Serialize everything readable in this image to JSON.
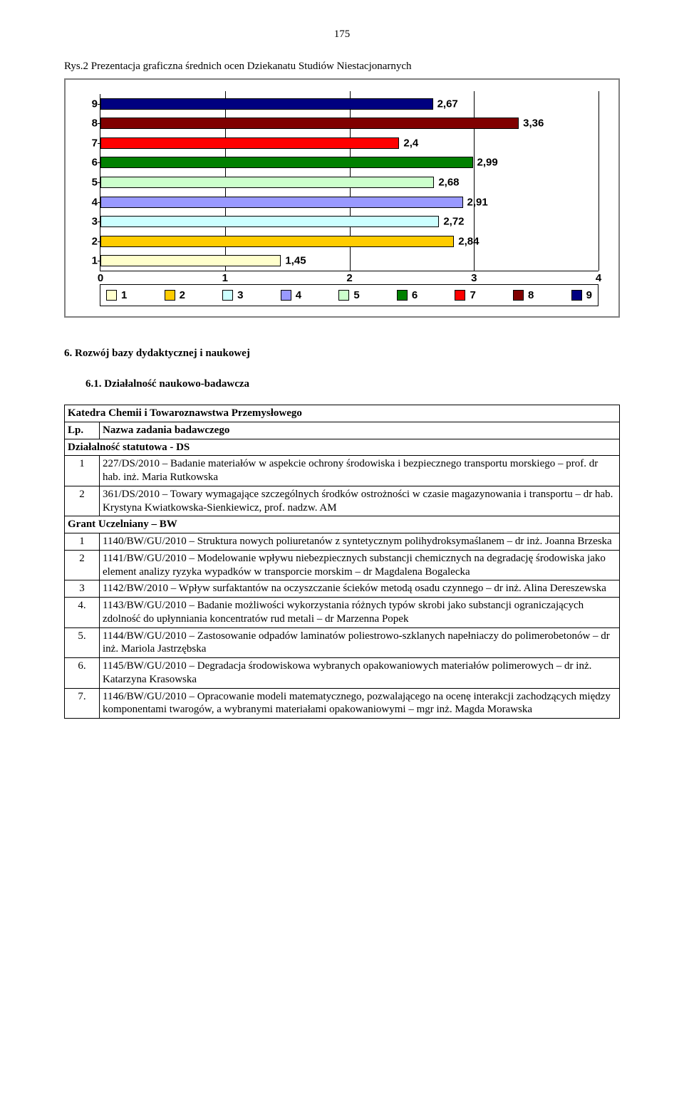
{
  "page_number": "175",
  "caption": "Rys.2 Prezentacja graficzna średnich ocen Dziekanatu Studiów Niestacjonarnych",
  "chart": {
    "type": "bar-horizontal",
    "x_min": 0,
    "x_max": 4,
    "x_ticks": [
      0,
      1,
      2,
      3,
      4
    ],
    "y_labels": [
      "1",
      "2",
      "3",
      "4",
      "5",
      "6",
      "7",
      "8",
      "9"
    ],
    "bars": [
      {
        "label": "1",
        "value": 1.45,
        "value_text": "1,45",
        "fill": "#ffffcc",
        "border": "#000000"
      },
      {
        "label": "2",
        "value": 2.84,
        "value_text": "2,84",
        "fill": "#ffcc00",
        "border": "#000000"
      },
      {
        "label": "3",
        "value": 2.72,
        "value_text": "2,72",
        "fill": "#ccffff",
        "border": "#000000"
      },
      {
        "label": "4",
        "value": 2.91,
        "value_text": "2,91",
        "fill": "#9999ff",
        "border": "#000000"
      },
      {
        "label": "5",
        "value": 2.68,
        "value_text": "2,68",
        "fill": "#ccffcc",
        "border": "#000000"
      },
      {
        "label": "6",
        "value": 2.99,
        "value_text": "2,99",
        "fill": "#008000",
        "border": "#000000"
      },
      {
        "label": "7",
        "value": 2.4,
        "value_text": "2,4",
        "fill": "#ff0000",
        "border": "#000000"
      },
      {
        "label": "8",
        "value": 3.36,
        "value_text": "3,36",
        "fill": "#800000",
        "border": "#000000"
      },
      {
        "label": "9",
        "value": 2.67,
        "value_text": "2,67",
        "fill": "#000080",
        "border": "#000000"
      }
    ],
    "legend": [
      {
        "label": "1",
        "fill": "#ffffcc"
      },
      {
        "label": "2",
        "fill": "#ffcc00"
      },
      {
        "label": "3",
        "fill": "#ccffff"
      },
      {
        "label": "4",
        "fill": "#9999ff"
      },
      {
        "label": "5",
        "fill": "#ccffcc"
      },
      {
        "label": "6",
        "fill": "#008000"
      },
      {
        "label": "7",
        "fill": "#ff0000"
      },
      {
        "label": "8",
        "fill": "#800000"
      },
      {
        "label": "9",
        "fill": "#000080"
      }
    ],
    "axis_color": "#000000",
    "label_fontsize": 15,
    "label_fontweight": "bold",
    "chart_border_color": "#808080",
    "background": "#ffffff"
  },
  "headings": {
    "h6": "6.   Rozwój bazy dydaktycznej i naukowej",
    "h61": "6.1.  Działalność naukowo-badawcza"
  },
  "table": {
    "title_row": "Katedra Chemii i Towaroznawstwa Przemysłowego",
    "header_lp": "Lp.",
    "header_name": "Nazwa zadania badawczego",
    "section_ds": "Działalność statutowa - DS",
    "ds_rows": [
      {
        "lp": "1",
        "text": "227/DS/2010 – Badanie materiałów w aspekcie ochrony środowiska  i bezpiecznego transportu morskiego – prof. dr hab. inż. Maria Rutkowska"
      },
      {
        "lp": "2",
        "text": "361/DS/2010 – Towary wymagające szczególnych środków ostrożności w czasie magazynowania i transportu – dr hab. Krystyna Kwiatkowska-Sienkiewicz, prof. nadzw. AM"
      }
    ],
    "section_bw": "Grant Uczelniany – BW",
    "bw_rows": [
      {
        "lp": "1",
        "text": "1140/BW/GU/2010 – Struktura nowych poliuretanów z syntetycznym polihydroksymaślanem – dr inż. Joanna Brzeska"
      },
      {
        "lp": "2",
        "text": "1141/BW/GU/2010 – Modelowanie wpływu niebezpiecznych substancji chemicznych na degradację środowiska jako element analizy ryzyka wypadków w transporcie morskim – dr Magdalena Bogalecka"
      },
      {
        "lp": "3",
        "text": "1142/BW/2010 – Wpływ surfaktantów na oczyszczanie ścieków metodą osadu czynnego – dr inż. Alina Dereszewska"
      },
      {
        "lp": "4.",
        "text": "1143/BW/GU/2010 – Badanie  możliwości wykorzystania różnych typów skrobi jako substancji ograniczających zdolność do upłynniania koncentratów rud metali – dr Marzenna Popek"
      },
      {
        "lp": "5.",
        "text": "1144/BW/GU/2010 – Zastosowanie odpadów laminatów poliestrowo-szklanych napełniaczy do polimerobetonów –  dr inż. Mariola Jastrzębska"
      },
      {
        "lp": "6.",
        "text": "1145/BW/GU/2010 – Degradacja środowiskowa wybranych opakowaniowych materiałów polimerowych – dr inż. Katarzyna Krasowska"
      },
      {
        "lp": "7.",
        "text": "1146/BW/GU/2010 – Opracowanie modeli matematycznego, pozwalającego na ocenę interakcji zachodzących między komponentami twarogów,  a wybranymi materiałami opakowaniowymi – mgr inż. Magda Morawska"
      }
    ]
  }
}
